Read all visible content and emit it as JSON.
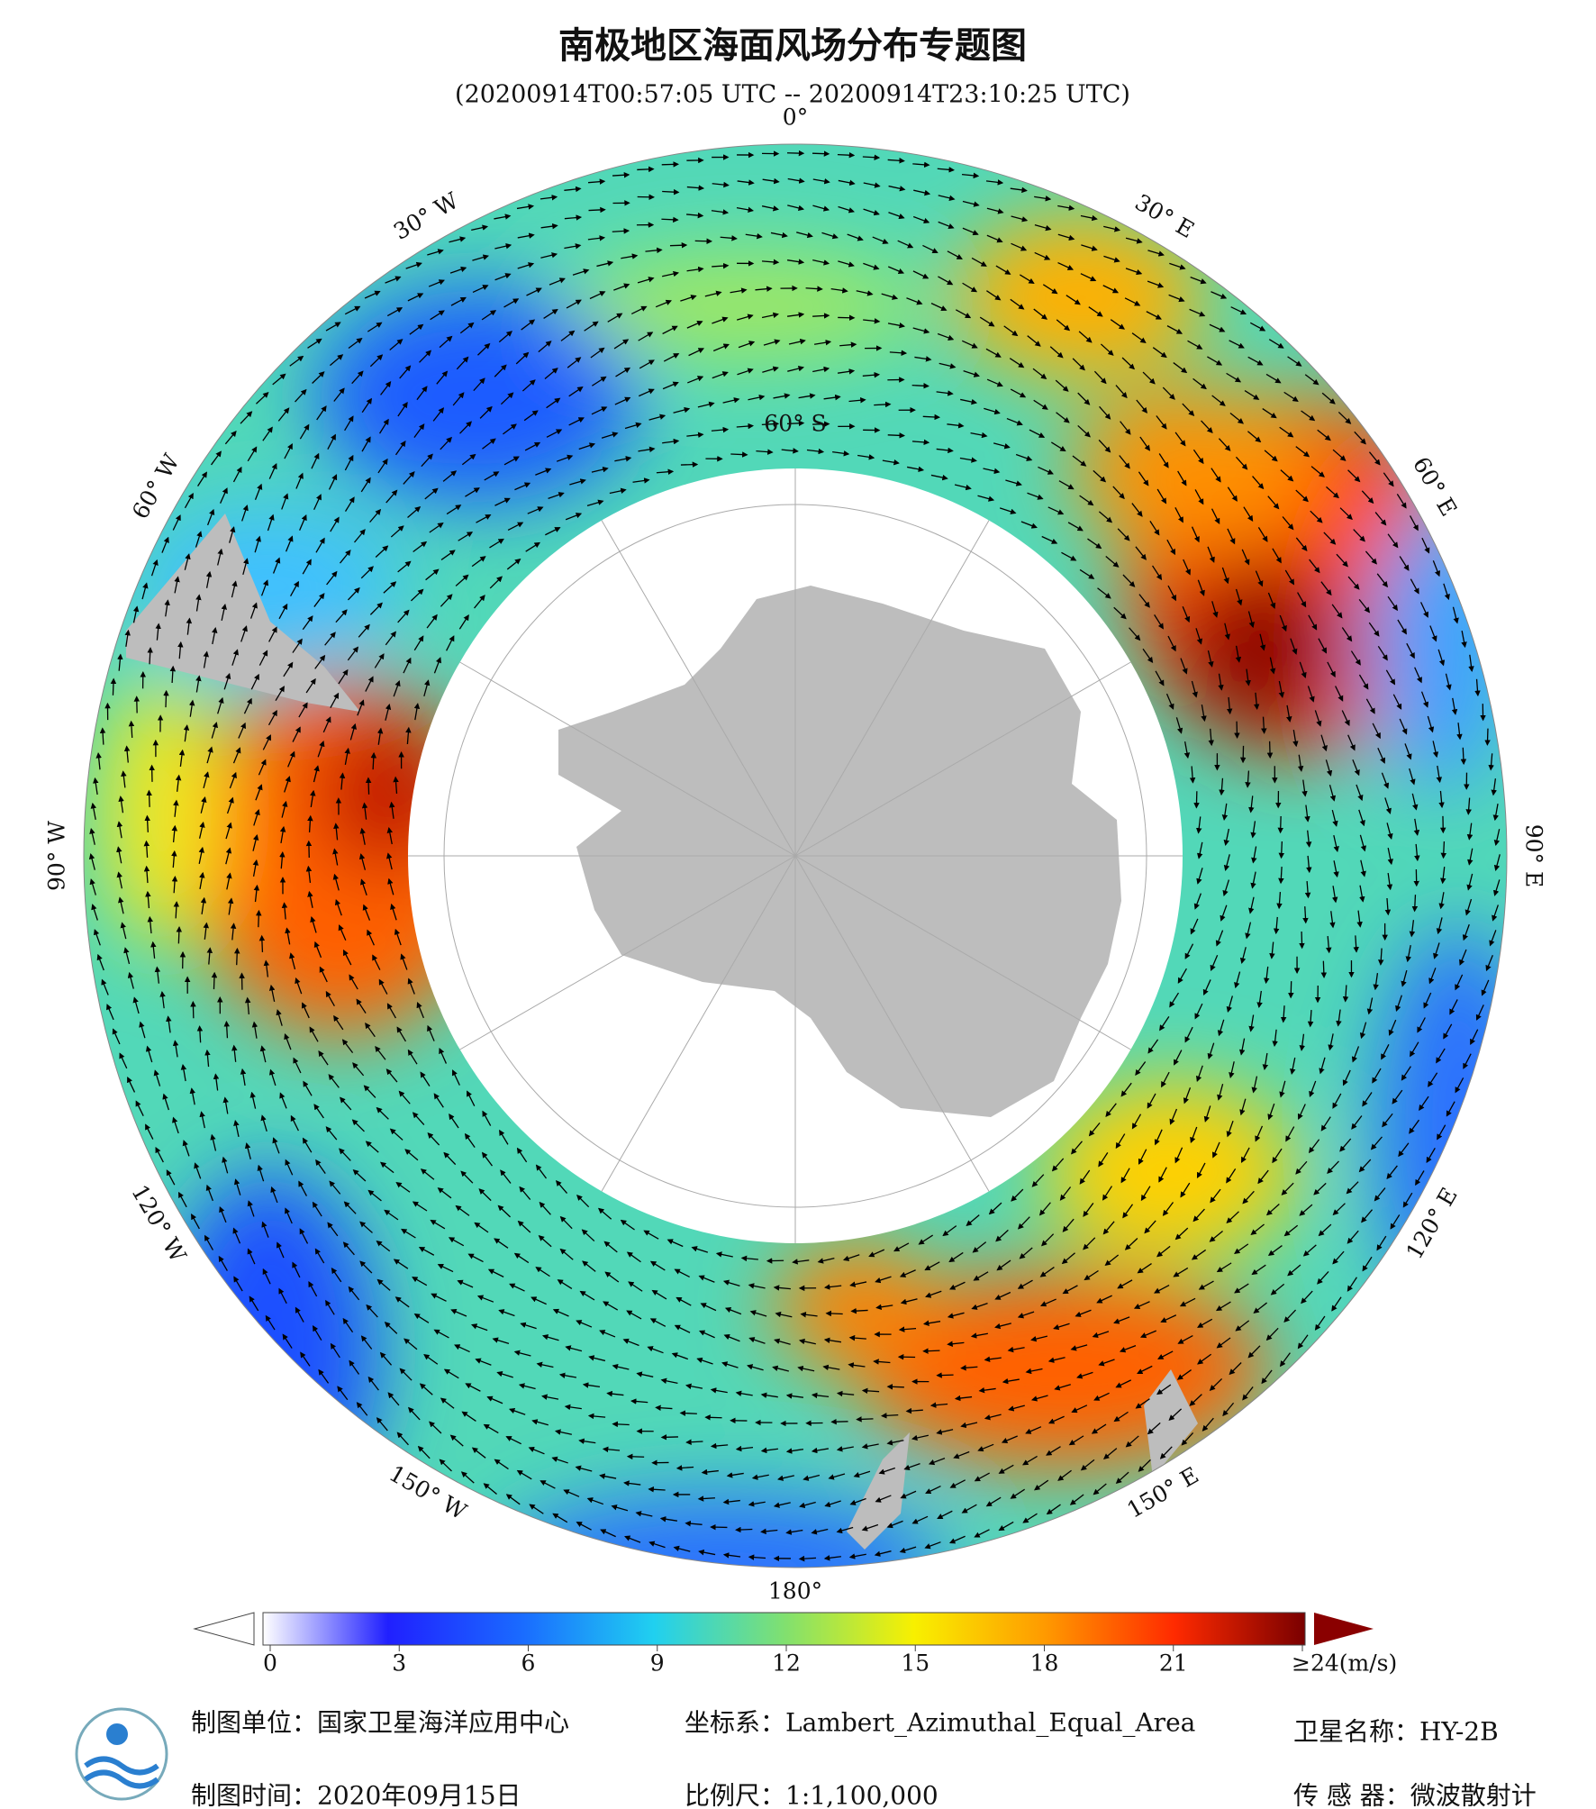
{
  "title": "南极地区海面风场分布专题图",
  "subtitle": "(20200914T00:57:05 UTC -- 20200914T23:10:25 UTC)",
  "map": {
    "longitude_labels": [
      "0°",
      "30° E",
      "60° E",
      "90° E",
      "120° E",
      "150° E",
      "180°",
      "150° W",
      "120° W",
      "90° W",
      "60° W",
      "30° W"
    ],
    "latitude_label": "60° S"
  },
  "colorbar": {
    "lim": [
      0,
      24
    ],
    "ticks": [
      0,
      3,
      6,
      9,
      12,
      15,
      18,
      21,
      {
        "value": 24,
        "label": "≥24(m/s)"
      }
    ]
  },
  "footer": {
    "producer": "制图单位：国家卫星海洋应用中心",
    "date": "制图时间：2020年09月15日",
    "projection": "坐标系：Lambert_Azimuthal_Equal_Area",
    "scale": "比例尺：1:1,100,000",
    "satellite": "卫星名称：HY-2B",
    "sensor": "传 感 器：微波散射计"
  }
}
